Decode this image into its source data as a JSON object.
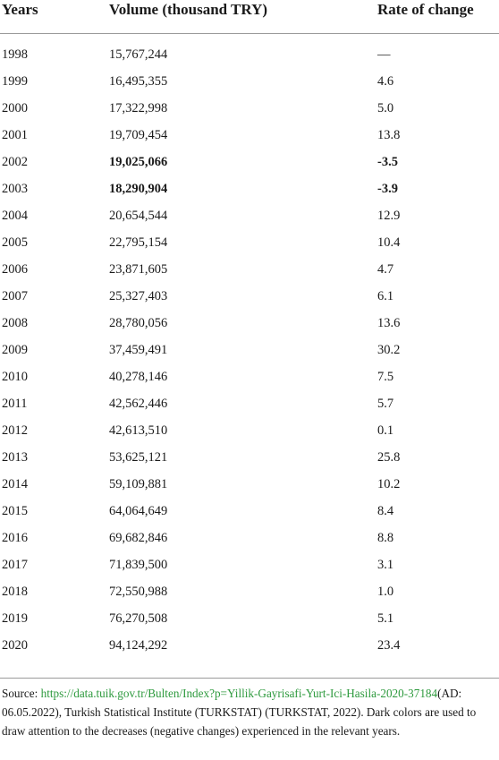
{
  "table": {
    "headers": [
      "Years",
      "Volume (thousand TRY)",
      "Rate of change"
    ],
    "rows": [
      {
        "year": "1998",
        "volume": "15,767,244",
        "rate": "—",
        "bold": false
      },
      {
        "year": "1999",
        "volume": "16,495,355",
        "rate": "4.6",
        "bold": false
      },
      {
        "year": "2000",
        "volume": "17,322,998",
        "rate": "5.0",
        "bold": false
      },
      {
        "year": "2001",
        "volume": "19,709,454",
        "rate": "13.8",
        "bold": false
      },
      {
        "year": "2002",
        "volume": "19,025,066",
        "rate": "-3.5",
        "bold": true
      },
      {
        "year": "2003",
        "volume": "18,290,904",
        "rate": "-3.9",
        "bold": true
      },
      {
        "year": "2004",
        "volume": "20,654,544",
        "rate": "12.9",
        "bold": false
      },
      {
        "year": "2005",
        "volume": "22,795,154",
        "rate": "10.4",
        "bold": false
      },
      {
        "year": "2006",
        "volume": "23,871,605",
        "rate": "4.7",
        "bold": false
      },
      {
        "year": "2007",
        "volume": "25,327,403",
        "rate": "6.1",
        "bold": false
      },
      {
        "year": "2008",
        "volume": "28,780,056",
        "rate": "13.6",
        "bold": false
      },
      {
        "year": "2009",
        "volume": "37,459,491",
        "rate": "30.2",
        "bold": false
      },
      {
        "year": "2010",
        "volume": "40,278,146",
        "rate": "7.5",
        "bold": false
      },
      {
        "year": "2011",
        "volume": "42,562,446",
        "rate": "5.7",
        "bold": false
      },
      {
        "year": "2012",
        "volume": "42,613,510",
        "rate": "0.1",
        "bold": false
      },
      {
        "year": "2013",
        "volume": "53,625,121",
        "rate": "25.8",
        "bold": false
      },
      {
        "year": "2014",
        "volume": "59,109,881",
        "rate": "10.2",
        "bold": false
      },
      {
        "year": "2015",
        "volume": "64,064,649",
        "rate": "8.4",
        "bold": false
      },
      {
        "year": "2016",
        "volume": "69,682,846",
        "rate": "8.8",
        "bold": false
      },
      {
        "year": "2017",
        "volume": "71,839,500",
        "rate": "3.1",
        "bold": false
      },
      {
        "year": "2018",
        "volume": "72,550,988",
        "rate": "1.0",
        "bold": false
      },
      {
        "year": "2019",
        "volume": "76,270,508",
        "rate": "5.1",
        "bold": false
      },
      {
        "year": "2020",
        "volume": "94,124,292",
        "rate": "23.4",
        "bold": false
      }
    ]
  },
  "footnote": {
    "source_label": "Source: ",
    "link_text": "https://data.tuik.gov.tr/Bulten/Index?p=Yillik-Gayrisafi-Yurt-Ici-Hasila-2020-37184",
    "after_link": "(AD: 06.05.2022), Turkish Statistical Institute (TURKSTAT) (TURKSTAT, 2022). Dark colors are used to draw attention to the decreases (negative changes) experienced in the relevant years."
  },
  "colors": {
    "link": "#2e9a3e",
    "rule": "#9a9a9a",
    "text": "#1a1a1a"
  }
}
